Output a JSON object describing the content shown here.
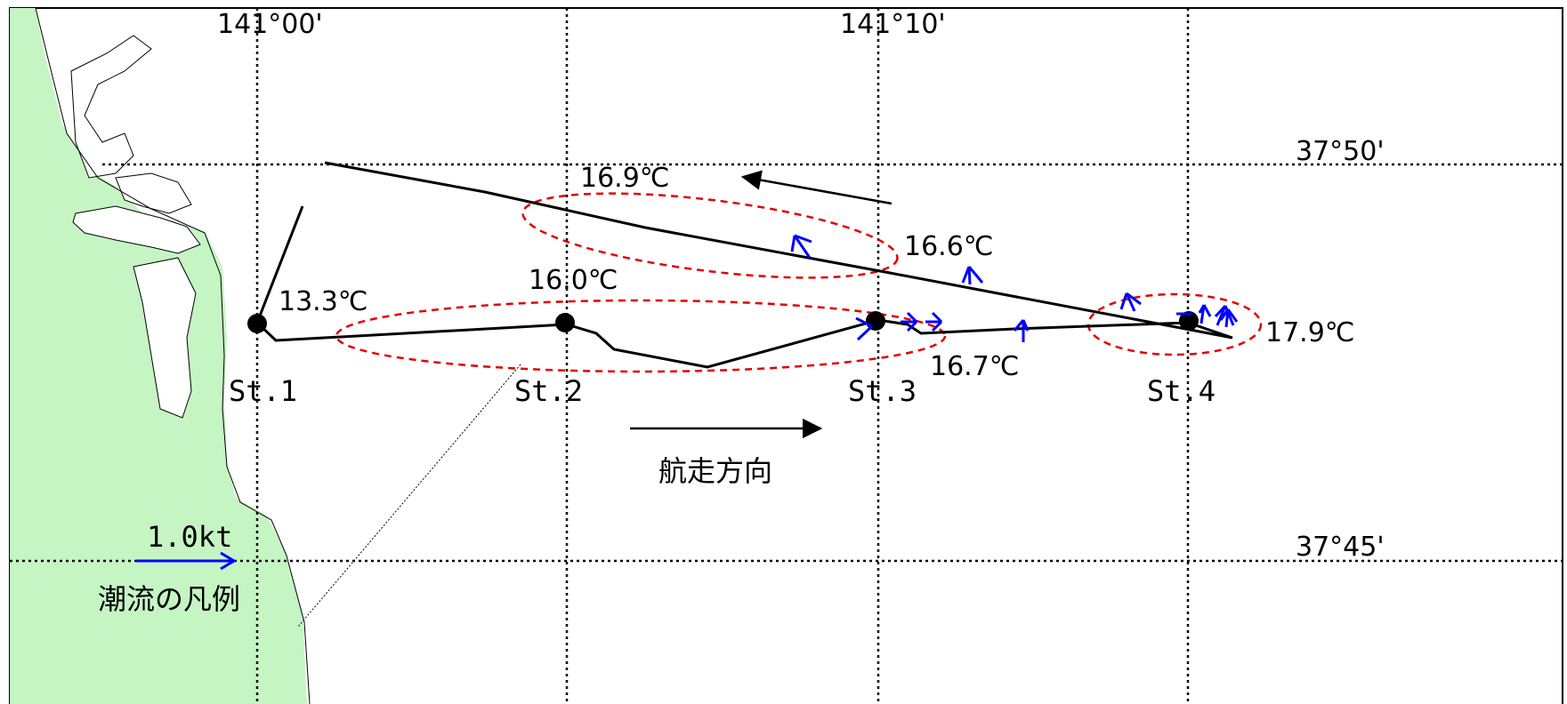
{
  "coordinates": {
    "lon_141_00": "141°00'",
    "lon_141_10": "141°10'",
    "lat_37_50": "37°50'",
    "lat_37_45": "37°45'"
  },
  "stations": [
    {
      "label": "St.1"
    },
    {
      "label": "St.2"
    },
    {
      "label": "St.3"
    },
    {
      "label": "St.4"
    }
  ],
  "temperatures": [
    {
      "value": "13.3℃"
    },
    {
      "value": "16.0℃"
    },
    {
      "value": "16.9℃"
    },
    {
      "value": "16.6℃"
    },
    {
      "value": "16.7℃"
    },
    {
      "value": "17.9℃"
    }
  ],
  "direction_label": "航走方向",
  "legend": {
    "speed": "1.0kt",
    "caption": "潮流の凡例"
  },
  "colors": {
    "land": "#c6f5c4",
    "track": "#000000",
    "current_arrow": "#0000ff",
    "highlight_ellipse": "#e00000",
    "grid": "#000000"
  }
}
